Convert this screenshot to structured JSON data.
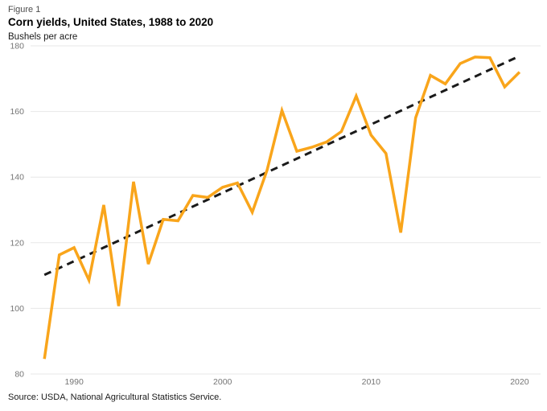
{
  "header": {
    "figure_label": "Figure 1",
    "title": "Corn yields, United States, 1988 to 2020",
    "units_label": "Bushels per acre"
  },
  "footer": {
    "source": "Source: USDA, National Agricultural Statistics Service."
  },
  "chart_data": {
    "type": "line",
    "title": "Corn yields, United States, 1988 to 2020",
    "ylabel": "Bushels per acre",
    "xlabel": "",
    "xlim": [
      1988,
      2020
    ],
    "ylim": [
      80,
      180
    ],
    "x_ticks": [
      1990,
      2000,
      2010,
      2020
    ],
    "y_ticks": [
      80,
      100,
      120,
      140,
      160,
      180
    ],
    "grid": "horizontal",
    "legend_position": "none",
    "x": [
      1988,
      1989,
      1990,
      1991,
      1992,
      1993,
      1994,
      1995,
      1996,
      1997,
      1998,
      1999,
      2000,
      2001,
      2002,
      2003,
      2004,
      2005,
      2006,
      2007,
      2008,
      2009,
      2010,
      2011,
      2012,
      2013,
      2014,
      2015,
      2016,
      2017,
      2018,
      2019,
      2020
    ],
    "series": [
      {
        "name": "Corn yield",
        "style": "solid",
        "color": "#F9A51B",
        "values": [
          84.6,
          116.3,
          118.5,
          108.6,
          131.5,
          100.7,
          138.6,
          113.5,
          127.1,
          126.7,
          134.4,
          133.8,
          136.9,
          138.2,
          129.3,
          142.2,
          160.3,
          147.9,
          149.1,
          150.7,
          153.9,
          164.7,
          152.8,
          147.2,
          123.1,
          158.1,
          171.0,
          168.4,
          174.6,
          176.6,
          176.4,
          167.5,
          172.0
        ]
      },
      {
        "name": "Linear trend",
        "style": "dashed",
        "color": "#1a1a1a",
        "x": [
          1988,
          2020
        ],
        "values": [
          110.2,
          176.9
        ]
      }
    ],
    "colors": {
      "line": "#F9A51B",
      "trend": "#1a1a1a",
      "gridline": "#e7e7e7",
      "tick_label": "#757575"
    }
  }
}
